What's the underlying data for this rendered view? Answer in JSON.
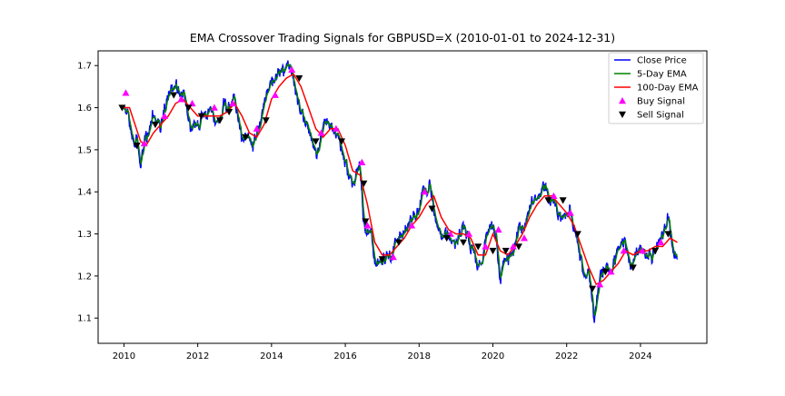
{
  "chart_data": {
    "type": "line",
    "title": "EMA Crossover Trading Signals for GBPUSD=X (2010-01-01 to 2024-12-31)",
    "xlabel": "",
    "ylabel": "",
    "xlim": [
      2009.3,
      2025.8
    ],
    "ylim": [
      1.04,
      1.735
    ],
    "x_ticks": [
      "2010",
      "2012",
      "2014",
      "2016",
      "2018",
      "2020",
      "2022",
      "2024"
    ],
    "y_ticks": [
      "1.1",
      "1.2",
      "1.3",
      "1.4",
      "1.5",
      "1.6",
      "1.7"
    ],
    "grid": false,
    "legend_position": "top-right",
    "colors": {
      "close": "#0000ff",
      "ema5": "#008000",
      "ema100": "#ff0000",
      "buy": "#ff00ff",
      "sell": "#000000"
    },
    "close_anchors": [
      [
        2010.0,
        1.61
      ],
      [
        2010.1,
        1.6
      ],
      [
        2010.2,
        1.55
      ],
      [
        2010.3,
        1.5
      ],
      [
        2010.35,
        1.53
      ],
      [
        2010.45,
        1.46
      ],
      [
        2010.55,
        1.52
      ],
      [
        2010.7,
        1.55
      ],
      [
        2010.8,
        1.59
      ],
      [
        2010.9,
        1.56
      ],
      [
        2011.0,
        1.55
      ],
      [
        2011.1,
        1.6
      ],
      [
        2011.25,
        1.63
      ],
      [
        2011.4,
        1.66
      ],
      [
        2011.5,
        1.63
      ],
      [
        2011.6,
        1.64
      ],
      [
        2011.7,
        1.6
      ],
      [
        2011.8,
        1.55
      ],
      [
        2011.9,
        1.56
      ],
      [
        2012.0,
        1.55
      ],
      [
        2012.1,
        1.57
      ],
      [
        2012.25,
        1.59
      ],
      [
        2012.4,
        1.6
      ],
      [
        2012.5,
        1.55
      ],
      [
        2012.6,
        1.58
      ],
      [
        2012.7,
        1.61
      ],
      [
        2012.8,
        1.6
      ],
      [
        2012.9,
        1.61
      ],
      [
        2013.0,
        1.63
      ],
      [
        2013.1,
        1.58
      ],
      [
        2013.2,
        1.52
      ],
      [
        2013.35,
        1.53
      ],
      [
        2013.5,
        1.51
      ],
      [
        2013.6,
        1.55
      ],
      [
        2013.7,
        1.57
      ],
      [
        2013.8,
        1.62
      ],
      [
        2013.9,
        1.64
      ],
      [
        2014.0,
        1.66
      ],
      [
        2014.1,
        1.66
      ],
      [
        2014.2,
        1.68
      ],
      [
        2014.35,
        1.69
      ],
      [
        2014.45,
        1.71
      ],
      [
        2014.55,
        1.69
      ],
      [
        2014.65,
        1.64
      ],
      [
        2014.8,
        1.59
      ],
      [
        2014.95,
        1.56
      ],
      [
        2015.1,
        1.52
      ],
      [
        2015.25,
        1.48
      ],
      [
        2015.35,
        1.53
      ],
      [
        2015.45,
        1.57
      ],
      [
        2015.55,
        1.56
      ],
      [
        2015.7,
        1.54
      ],
      [
        2015.8,
        1.53
      ],
      [
        2015.9,
        1.5
      ],
      [
        2016.0,
        1.47
      ],
      [
        2016.1,
        1.43
      ],
      [
        2016.2,
        1.42
      ],
      [
        2016.3,
        1.44
      ],
      [
        2016.4,
        1.46
      ],
      [
        2016.48,
        1.35
      ],
      [
        2016.55,
        1.31
      ],
      [
        2016.7,
        1.3
      ],
      [
        2016.8,
        1.23
      ],
      [
        2016.95,
        1.23
      ],
      [
        2017.1,
        1.25
      ],
      [
        2017.25,
        1.24
      ],
      [
        2017.35,
        1.28
      ],
      [
        2017.5,
        1.29
      ],
      [
        2017.6,
        1.31
      ],
      [
        2017.75,
        1.33
      ],
      [
        2017.9,
        1.34
      ],
      [
        2018.0,
        1.35
      ],
      [
        2018.1,
        1.41
      ],
      [
        2018.2,
        1.4
      ],
      [
        2018.3,
        1.42
      ],
      [
        2018.4,
        1.35
      ],
      [
        2018.5,
        1.33
      ],
      [
        2018.6,
        1.29
      ],
      [
        2018.7,
        1.3
      ],
      [
        2018.85,
        1.28
      ],
      [
        2019.0,
        1.27
      ],
      [
        2019.1,
        1.3
      ],
      [
        2019.2,
        1.32
      ],
      [
        2019.35,
        1.29
      ],
      [
        2019.5,
        1.25
      ],
      [
        2019.6,
        1.22
      ],
      [
        2019.7,
        1.23
      ],
      [
        2019.8,
        1.29
      ],
      [
        2019.9,
        1.32
      ],
      [
        2020.0,
        1.31
      ],
      [
        2020.1,
        1.29
      ],
      [
        2020.2,
        1.17
      ],
      [
        2020.3,
        1.24
      ],
      [
        2020.45,
        1.24
      ],
      [
        2020.55,
        1.26
      ],
      [
        2020.7,
        1.31
      ],
      [
        2020.85,
        1.3
      ],
      [
        2021.0,
        1.36
      ],
      [
        2021.1,
        1.39
      ],
      [
        2021.2,
        1.38
      ],
      [
        2021.35,
        1.41
      ],
      [
        2021.45,
        1.41
      ],
      [
        2021.55,
        1.38
      ],
      [
        2021.7,
        1.37
      ],
      [
        2021.85,
        1.33
      ],
      [
        2022.0,
        1.35
      ],
      [
        2022.1,
        1.35
      ],
      [
        2022.25,
        1.3
      ],
      [
        2022.35,
        1.25
      ],
      [
        2022.5,
        1.2
      ],
      [
        2022.6,
        1.2
      ],
      [
        2022.7,
        1.13
      ],
      [
        2022.75,
        1.08
      ],
      [
        2022.85,
        1.17
      ],
      [
        2022.95,
        1.21
      ],
      [
        2023.1,
        1.22
      ],
      [
        2023.2,
        1.2
      ],
      [
        2023.35,
        1.25
      ],
      [
        2023.5,
        1.29
      ],
      [
        2023.6,
        1.27
      ],
      [
        2023.75,
        1.22
      ],
      [
        2023.9,
        1.26
      ],
      [
        2024.0,
        1.27
      ],
      [
        2024.15,
        1.26
      ],
      [
        2024.3,
        1.25
      ],
      [
        2024.45,
        1.27
      ],
      [
        2024.6,
        1.29
      ],
      [
        2024.7,
        1.32
      ],
      [
        2024.75,
        1.34
      ],
      [
        2024.85,
        1.27
      ],
      [
        2025.0,
        1.25
      ]
    ],
    "ema100_anchors": [
      [
        2010.0,
        1.6
      ],
      [
        2010.15,
        1.6
      ],
      [
        2010.3,
        1.56
      ],
      [
        2010.45,
        1.52
      ],
      [
        2010.6,
        1.51
      ],
      [
        2010.8,
        1.54
      ],
      [
        2011.0,
        1.56
      ],
      [
        2011.2,
        1.58
      ],
      [
        2011.4,
        1.61
      ],
      [
        2011.6,
        1.62
      ],
      [
        2011.8,
        1.6
      ],
      [
        2012.0,
        1.58
      ],
      [
        2012.2,
        1.58
      ],
      [
        2012.4,
        1.58
      ],
      [
        2012.6,
        1.58
      ],
      [
        2012.8,
        1.59
      ],
      [
        2013.0,
        1.61
      ],
      [
        2013.2,
        1.58
      ],
      [
        2013.4,
        1.54
      ],
      [
        2013.6,
        1.53
      ],
      [
        2013.8,
        1.56
      ],
      [
        2014.0,
        1.62
      ],
      [
        2014.2,
        1.65
      ],
      [
        2014.4,
        1.67
      ],
      [
        2014.6,
        1.68
      ],
      [
        2014.8,
        1.65
      ],
      [
        2015.0,
        1.6
      ],
      [
        2015.2,
        1.55
      ],
      [
        2015.4,
        1.53
      ],
      [
        2015.6,
        1.55
      ],
      [
        2015.8,
        1.55
      ],
      [
        2016.0,
        1.51
      ],
      [
        2016.2,
        1.45
      ],
      [
        2016.4,
        1.44
      ],
      [
        2016.6,
        1.37
      ],
      [
        2016.8,
        1.28
      ],
      [
        2017.0,
        1.25
      ],
      [
        2017.2,
        1.25
      ],
      [
        2017.4,
        1.27
      ],
      [
        2017.6,
        1.29
      ],
      [
        2017.8,
        1.32
      ],
      [
        2018.0,
        1.34
      ],
      [
        2018.2,
        1.37
      ],
      [
        2018.4,
        1.39
      ],
      [
        2018.6,
        1.34
      ],
      [
        2018.8,
        1.31
      ],
      [
        2019.0,
        1.3
      ],
      [
        2019.2,
        1.3
      ],
      [
        2019.4,
        1.29
      ],
      [
        2019.6,
        1.25
      ],
      [
        2019.8,
        1.25
      ],
      [
        2020.0,
        1.3
      ],
      [
        2020.2,
        1.26
      ],
      [
        2020.4,
        1.25
      ],
      [
        2020.6,
        1.27
      ],
      [
        2020.8,
        1.3
      ],
      [
        2021.0,
        1.34
      ],
      [
        2021.2,
        1.37
      ],
      [
        2021.4,
        1.39
      ],
      [
        2021.6,
        1.39
      ],
      [
        2021.8,
        1.37
      ],
      [
        2022.0,
        1.35
      ],
      [
        2022.2,
        1.32
      ],
      [
        2022.4,
        1.27
      ],
      [
        2022.6,
        1.22
      ],
      [
        2022.8,
        1.18
      ],
      [
        2023.0,
        1.19
      ],
      [
        2023.2,
        1.21
      ],
      [
        2023.4,
        1.23
      ],
      [
        2023.6,
        1.26
      ],
      [
        2023.8,
        1.25
      ],
      [
        2024.0,
        1.26
      ],
      [
        2024.2,
        1.26
      ],
      [
        2024.4,
        1.27
      ],
      [
        2024.6,
        1.27
      ],
      [
        2024.8,
        1.29
      ],
      [
        2025.0,
        1.28
      ]
    ],
    "buy_signals": [
      [
        2010.05,
        1.635
      ],
      [
        2010.55,
        1.515
      ],
      [
        2011.1,
        1.58
      ],
      [
        2011.55,
        1.62
      ],
      [
        2011.85,
        1.61
      ],
      [
        2012.45,
        1.6
      ],
      [
        2012.95,
        1.61
      ],
      [
        2013.6,
        1.55
      ],
      [
        2014.1,
        1.63
      ],
      [
        2014.55,
        1.69
      ],
      [
        2015.35,
        1.54
      ],
      [
        2015.75,
        1.55
      ],
      [
        2016.45,
        1.47
      ],
      [
        2016.6,
        1.32
      ],
      [
        2017.3,
        1.245
      ],
      [
        2017.8,
        1.32
      ],
      [
        2018.15,
        1.4
      ],
      [
        2018.85,
        1.3
      ],
      [
        2019.35,
        1.3
      ],
      [
        2019.8,
        1.27
      ],
      [
        2020.15,
        1.31
      ],
      [
        2020.55,
        1.27
      ],
      [
        2020.85,
        1.29
      ],
      [
        2021.65,
        1.39
      ],
      [
        2022.1,
        1.35
      ],
      [
        2022.9,
        1.18
      ],
      [
        2023.2,
        1.21
      ],
      [
        2023.55,
        1.26
      ],
      [
        2024.05,
        1.26
      ],
      [
        2024.55,
        1.28
      ]
    ],
    "sell_signals": [
      [
        2009.95,
        1.6
      ],
      [
        2010.35,
        1.51
      ],
      [
        2010.85,
        1.56
      ],
      [
        2011.35,
        1.63
      ],
      [
        2011.75,
        1.6
      ],
      [
        2012.1,
        1.58
      ],
      [
        2012.6,
        1.57
      ],
      [
        2012.85,
        1.59
      ],
      [
        2013.3,
        1.53
      ],
      [
        2013.85,
        1.57
      ],
      [
        2014.75,
        1.67
      ],
      [
        2015.2,
        1.52
      ],
      [
        2015.9,
        1.52
      ],
      [
        2016.5,
        1.42
      ],
      [
        2016.55,
        1.33
      ],
      [
        2017.0,
        1.24
      ],
      [
        2017.45,
        1.28
      ],
      [
        2018.35,
        1.36
      ],
      [
        2018.75,
        1.29
      ],
      [
        2019.2,
        1.28
      ],
      [
        2019.6,
        1.27
      ],
      [
        2020.0,
        1.26
      ],
      [
        2020.35,
        1.26
      ],
      [
        2020.7,
        1.27
      ],
      [
        2021.5,
        1.38
      ],
      [
        2021.9,
        1.38
      ],
      [
        2022.3,
        1.3
      ],
      [
        2022.7,
        1.17
      ],
      [
        2023.05,
        1.21
      ],
      [
        2023.8,
        1.22
      ],
      [
        2024.4,
        1.26
      ],
      [
        2024.75,
        1.3
      ]
    ],
    "legend": [
      {
        "key": "close",
        "label": "Close Price",
        "marker": "line"
      },
      {
        "key": "ema5",
        "label": "5-Day EMA",
        "marker": "line"
      },
      {
        "key": "ema100",
        "label": "100-Day EMA",
        "marker": "line"
      },
      {
        "key": "buy",
        "label": "Buy Signal",
        "marker": "triangle-up"
      },
      {
        "key": "sell",
        "label": "Sell Signal",
        "marker": "triangle-down"
      }
    ]
  }
}
